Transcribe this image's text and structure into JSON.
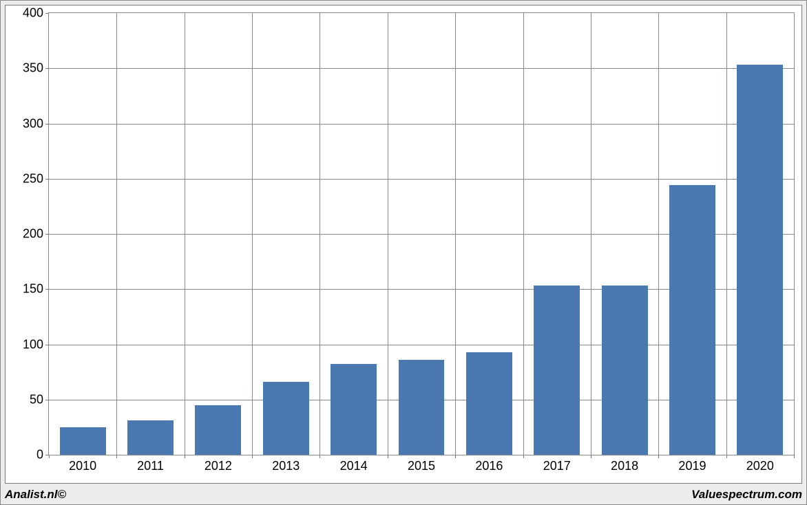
{
  "chart": {
    "type": "bar",
    "categories": [
      "2010",
      "2011",
      "2012",
      "2013",
      "2014",
      "2015",
      "2016",
      "2017",
      "2018",
      "2019",
      "2020"
    ],
    "values": [
      25,
      31,
      45,
      66,
      82,
      86,
      93,
      153,
      153,
      244,
      353
    ],
    "bar_color": "#4a78b1",
    "bar_width_ratio": 0.68,
    "ylim": [
      0,
      400
    ],
    "ytick_step": 50,
    "y_tick_labels": [
      "0",
      "50",
      "100",
      "150",
      "200",
      "250",
      "300",
      "350",
      "400"
    ],
    "grid_color": "#898989",
    "background_color": "#ffffff",
    "frame_background": "#ececec",
    "axis_font_size": 18,
    "footer_font_size": 17
  },
  "footer": {
    "left": "Analist.nl©",
    "right": "Valuespectrum.com"
  }
}
